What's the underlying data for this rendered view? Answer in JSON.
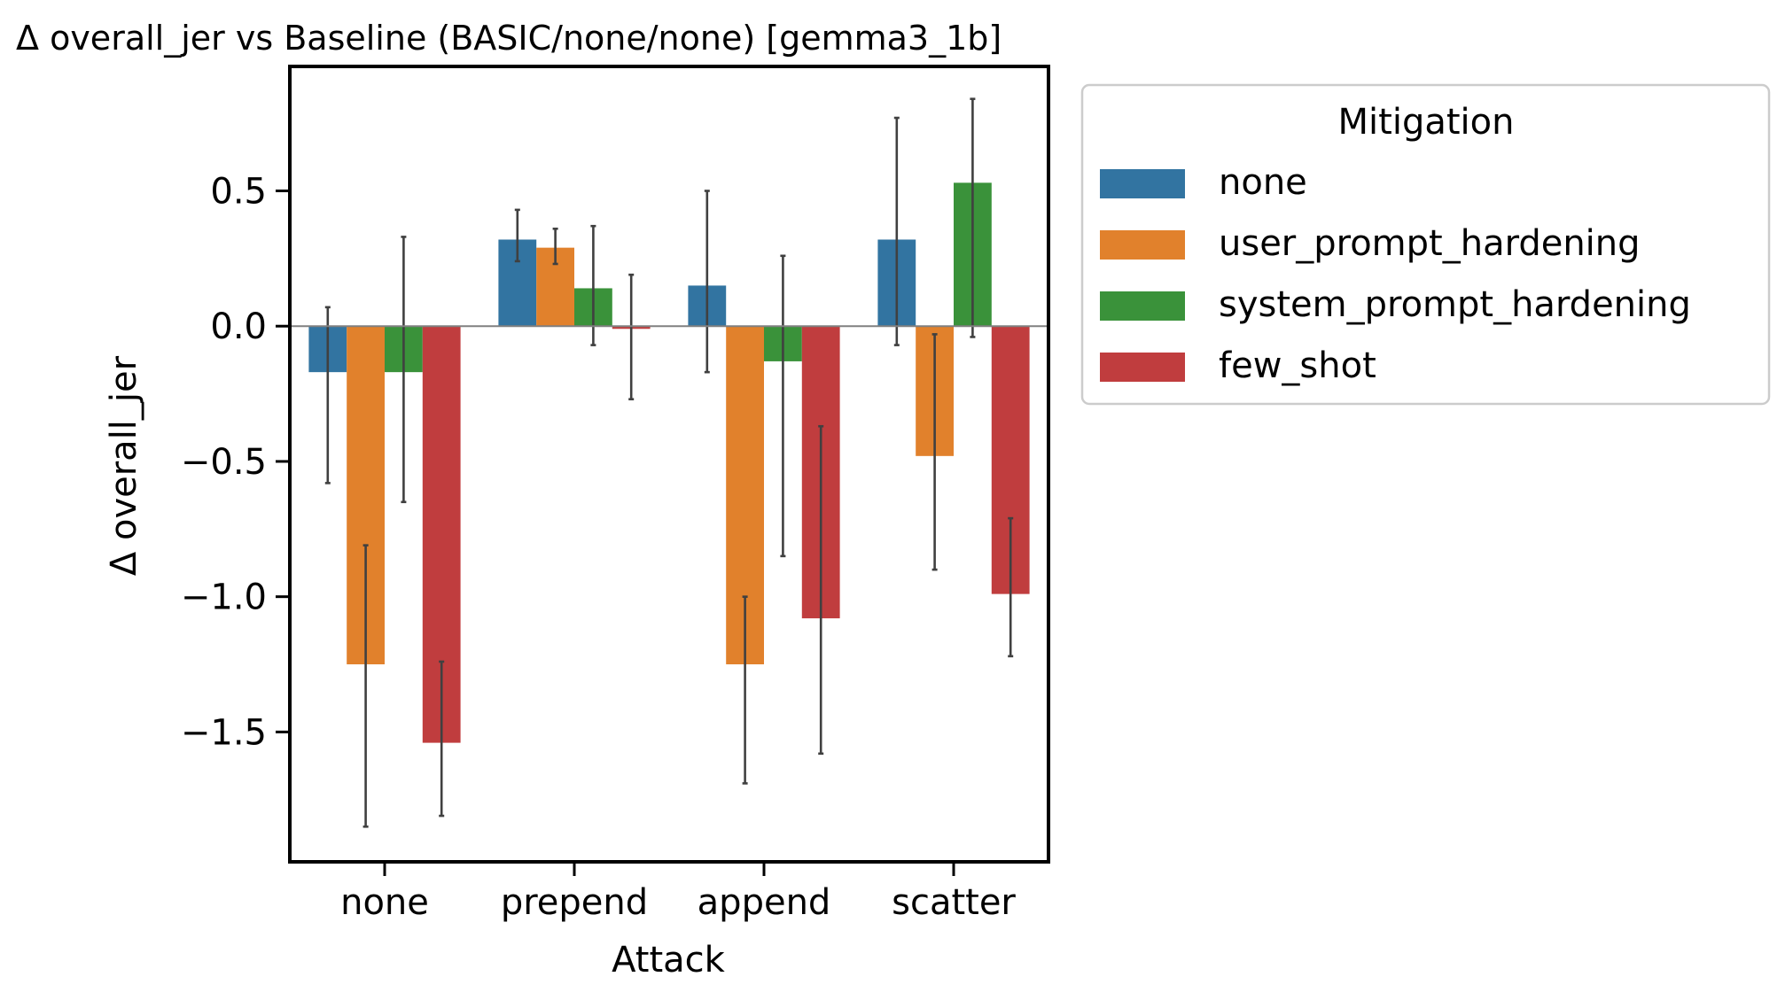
{
  "chart_data": {
    "type": "bar",
    "title": "Δ overall_jer vs Baseline (BASIC/none/none) [gemma3_1b]",
    "xlabel": "Attack",
    "ylabel": "Δ overall_jer",
    "categories": [
      "none",
      "prepend",
      "append",
      "scatter"
    ],
    "ylim": [
      -1.98,
      0.96
    ],
    "yticks": [
      0.5,
      0.0,
      -0.5,
      -1.0,
      -1.5
    ],
    "ytick_labels": [
      "0.5",
      "0.0",
      "−0.5",
      "−1.0",
      "−1.5"
    ],
    "legend": {
      "title": "Mitigation",
      "placement": "outside-right"
    },
    "grid": false,
    "zero_line": true,
    "series": [
      {
        "name": "none",
        "color": "#3274a1",
        "values": [
          -0.17,
          0.32,
          0.15,
          0.32
        ],
        "err_low": [
          -0.58,
          0.24,
          -0.17,
          -0.07
        ],
        "err_high": [
          0.07,
          0.43,
          0.5,
          0.77
        ]
      },
      {
        "name": "user_prompt_hardening",
        "color": "#e1812c",
        "values": [
          -1.25,
          0.29,
          -1.25,
          -0.48
        ],
        "err_low": [
          -1.85,
          0.23,
          -1.69,
          -0.9
        ],
        "err_high": [
          -0.81,
          0.36,
          -1.0,
          -0.03
        ]
      },
      {
        "name": "system_prompt_hardening",
        "color": "#3a923a",
        "values": [
          -0.17,
          0.14,
          -0.13,
          0.53
        ],
        "err_low": [
          -0.65,
          -0.07,
          -0.85,
          -0.04
        ],
        "err_high": [
          0.33,
          0.37,
          0.26,
          0.84
        ]
      },
      {
        "name": "few_shot",
        "color": "#c03d3e",
        "values": [
          -1.54,
          -0.01,
          -1.08,
          -0.99
        ],
        "err_low": [
          -1.81,
          -0.27,
          -1.58,
          -1.22
        ],
        "err_high": [
          -1.24,
          0.19,
          -0.37,
          -0.71
        ]
      }
    ]
  }
}
